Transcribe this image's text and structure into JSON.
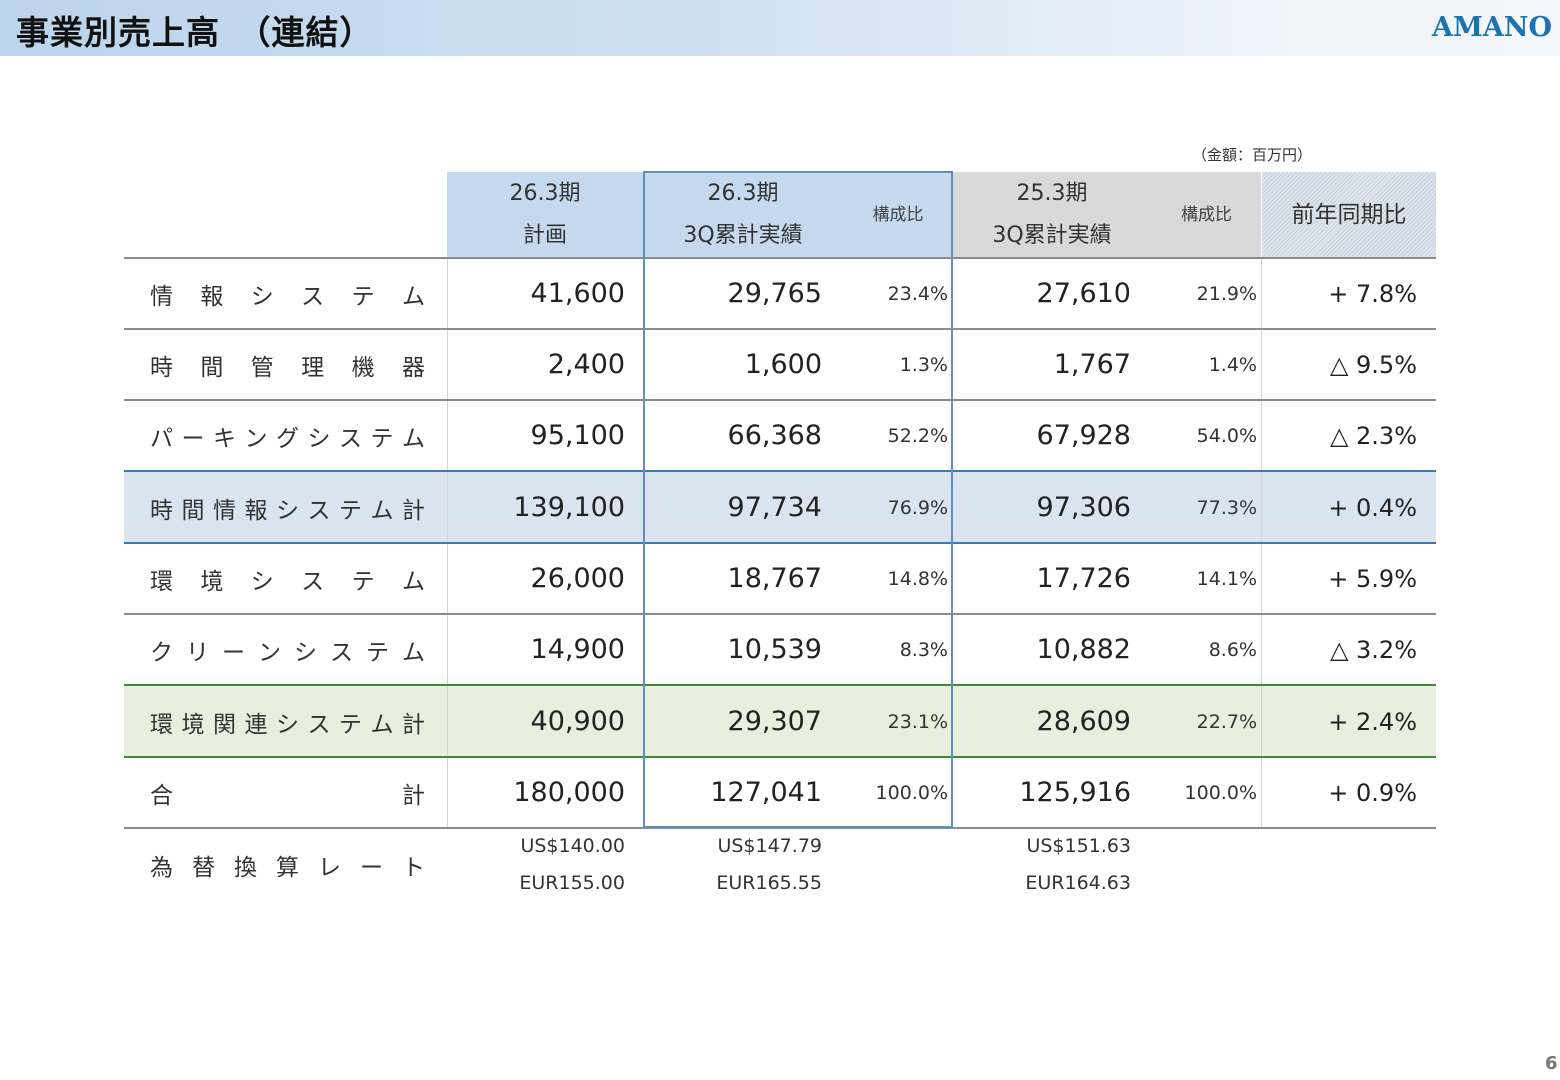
{
  "header": {
    "title": "事業別売上高　（連結）",
    "logo": "AMANO"
  },
  "unit_note": "（金額：百万円）",
  "page_number": "6",
  "colors": {
    "plan_header": "#c5d9ef",
    "prev_header": "#d9d9d9",
    "subtotal_blue": "#dae5f1",
    "subtotal_green": "#e8efdf",
    "logo": "#1a72b0"
  },
  "table": {
    "columns": {
      "plan": {
        "line1": "26.3期",
        "line2": "計画"
      },
      "actual": {
        "line1": "26.3期",
        "line2": "3Q累計実績",
        "ratio": "構成比"
      },
      "prev": {
        "line1": "25.3期",
        "line2": "3Q累計実績",
        "ratio": "構成比"
      },
      "yoy": "前年同期比"
    },
    "rows": [
      {
        "label": [
          "情",
          "報",
          "シ",
          "ス",
          "テ",
          "ム"
        ],
        "plan": "41,600",
        "actual": "29,765",
        "actual_ratio": "23.4%",
        "prev": "27,610",
        "prev_ratio": "21.9%",
        "yoy": "+ 7.8%"
      },
      {
        "label": [
          "時",
          "間",
          "管",
          "理",
          "機",
          "器"
        ],
        "plan": "2,400",
        "actual": "1,600",
        "actual_ratio": "1.3%",
        "prev": "1,767",
        "prev_ratio": "1.4%",
        "yoy": "△ 9.5%"
      },
      {
        "label": [
          "パ",
          "ー",
          "キ",
          "ン",
          "グ",
          "シ",
          "ス",
          "テ",
          "ム"
        ],
        "plan": "95,100",
        "actual": "66,368",
        "actual_ratio": "52.2%",
        "prev": "67,928",
        "prev_ratio": "54.0%",
        "yoy": "△ 2.3%"
      },
      {
        "label": [
          "時",
          "間",
          "情",
          "報",
          "シ",
          "ス",
          "テ",
          "ム",
          "計"
        ],
        "plan": "139,100",
        "actual": "97,734",
        "actual_ratio": "76.9%",
        "prev": "97,306",
        "prev_ratio": "77.3%",
        "yoy": "+ 0.4%"
      },
      {
        "label": [
          "環",
          "境",
          "シ",
          "ス",
          "テ",
          "ム"
        ],
        "plan": "26,000",
        "actual": "18,767",
        "actual_ratio": "14.8%",
        "prev": "17,726",
        "prev_ratio": "14.1%",
        "yoy": "+ 5.9%"
      },
      {
        "label": [
          "ク",
          "リ",
          "ー",
          "ン",
          "シ",
          "ス",
          "テ",
          "ム"
        ],
        "plan": "14,900",
        "actual": "10,539",
        "actual_ratio": "8.3%",
        "prev": "10,882",
        "prev_ratio": "8.6%",
        "yoy": "△ 3.2%"
      },
      {
        "label": [
          "環",
          "境",
          "関",
          "連",
          "シ",
          "ス",
          "テ",
          "ム",
          "計"
        ],
        "plan": "40,900",
        "actual": "29,307",
        "actual_ratio": "23.1%",
        "prev": "28,609",
        "prev_ratio": "22.7%",
        "yoy": "+ 2.4%"
      },
      {
        "label": [
          "合",
          "計"
        ],
        "plan": "180,000",
        "actual": "127,041",
        "actual_ratio": "100.0%",
        "prev": "125,916",
        "prev_ratio": "100.0%",
        "yoy": "+ 0.9%"
      }
    ],
    "fx": {
      "label": [
        "為",
        "替",
        "換",
        "算",
        "レ",
        "ー",
        "ト"
      ],
      "plan_usd": "US$140.00",
      "plan_eur": "EUR155.00",
      "actual_usd": "US$147.79",
      "actual_eur": "EUR165.55",
      "prev_usd": "US$151.63",
      "prev_eur": "EUR164.63"
    }
  }
}
